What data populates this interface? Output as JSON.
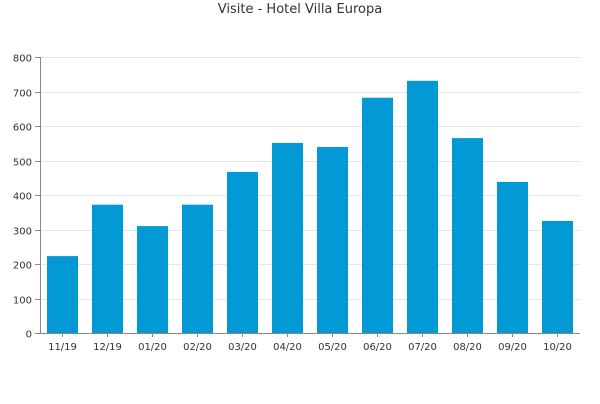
{
  "chart_data": {
    "type": "bar",
    "title": "Visite - Hotel Villa Europa",
    "xlabel": "",
    "ylabel": "",
    "categories": [
      "11/19",
      "12/19",
      "01/20",
      "02/20",
      "03/20",
      "04/20",
      "05/20",
      "06/20",
      "07/20",
      "08/20",
      "09/20",
      "10/20"
    ],
    "values": [
      223,
      372,
      310,
      372,
      467,
      551,
      539,
      682,
      731,
      565,
      438,
      325
    ],
    "ylim": [
      0,
      800
    ],
    "yticks": [
      0,
      100,
      200,
      300,
      400,
      500,
      600,
      700,
      800
    ],
    "grid": true,
    "legend": "none",
    "colors": {
      "bar": "#0399d4",
      "grid": "#e6e6e6",
      "axis": "#888888",
      "text": "#333333"
    }
  }
}
